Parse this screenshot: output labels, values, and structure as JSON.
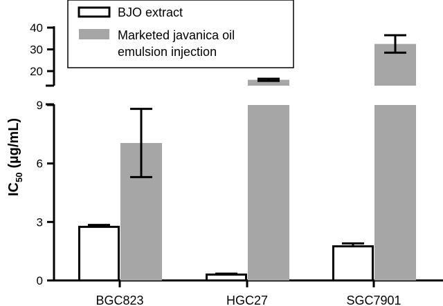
{
  "chart_data": {
    "type": "bar",
    "ylabel": "IC",
    "ylabel_subscript": "50",
    "ylabel_unit": "(µg/mL)",
    "categories": [
      "BGC823",
      "HGC27",
      "SGC7901"
    ],
    "series": [
      {
        "name": "BJO extract",
        "color": "#ffffff",
        "edge": "#000000",
        "values": [
          2.75,
          0.3,
          1.75
        ],
        "errors": [
          0.1,
          0.05,
          0.15
        ]
      },
      {
        "name": "Marketed javanica oil emulsion injection",
        "name_lines": [
          "Marketed javanica oil",
          "emulsion injection"
        ],
        "color": "#a6a6a6",
        "edge": "#a6a6a6",
        "values": [
          7.05,
          16.0,
          32.5
        ],
        "errors": [
          1.75,
          0.5,
          4.0
        ]
      }
    ],
    "y_axis_broken": true,
    "lower_segment": {
      "ylim": [
        0,
        9
      ],
      "ticks": [
        "0",
        "3",
        "6",
        "9"
      ]
    },
    "upper_segment": {
      "ylim": [
        13,
        40
      ],
      "ticks": [
        "20",
        "30",
        "40"
      ]
    },
    "legend_position": "top-center"
  }
}
